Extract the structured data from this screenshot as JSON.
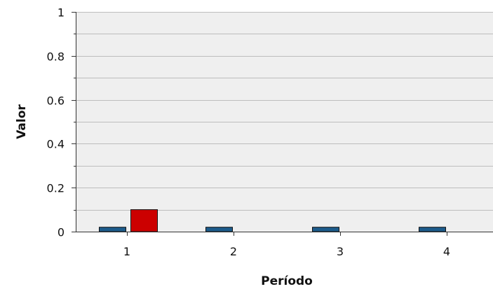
{
  "chart_data": {
    "type": "bar",
    "title": "",
    "xlabel": "Período",
    "ylabel": "Valor",
    "categories": [
      "1",
      "2",
      "3",
      "4"
    ],
    "series": [
      {
        "values": [
          0.02,
          0.02,
          0.02,
          0.02
        ],
        "color": "#1d5c8c"
      },
      {
        "values": [
          0.1,
          0,
          0,
          0
        ],
        "color": "#cc0000"
      }
    ],
    "ylim": [
      0,
      1
    ],
    "yticks": [
      0,
      0.2,
      0.4,
      0.6,
      0.8,
      1
    ],
    "ytick_labels": [
      "0",
      "0.2",
      "0.4",
      "0.6",
      "0.8",
      "1"
    ],
    "grid": true,
    "plot_background": "#efefef"
  }
}
